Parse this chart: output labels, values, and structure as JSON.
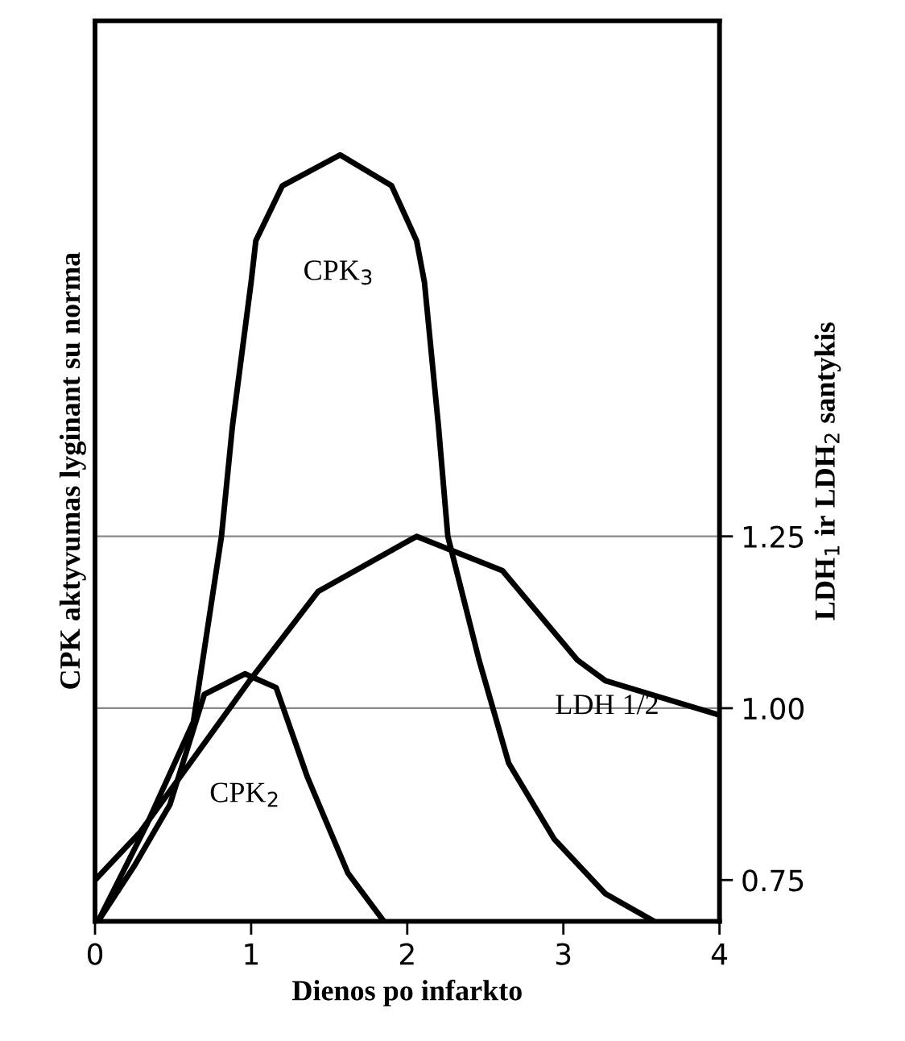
{
  "chart_data": {
    "type": "line",
    "xlabel": "Dienos po infarkto",
    "ylabel": "CPK aktyvumas lyginant su norma",
    "y2label": "LDH$_{1}$ ir LDH$_{2}$ santykis",
    "xlim": [
      0,
      4
    ],
    "xticks": [
      0,
      1,
      2,
      3,
      4
    ],
    "y2lim": [
      0.69,
      2.0
    ],
    "y2ticks": [
      {
        "value": 0.75,
        "label": "0.75"
      },
      {
        "value": 1,
        "label": "1.00"
      },
      {
        "value": 1.25,
        "label": "1.25"
      }
    ],
    "ref_lines": [
      {
        "axis": "y2",
        "value": 1.0,
        "color": "#888888"
      },
      {
        "axis": "y2",
        "value": 1.25,
        "color": "#888888"
      }
    ],
    "series": [
      {
        "name": "CPK$_{3}$",
        "color": "#000000",
        "axis": "y2",
        "x": [
          0.02,
          0.33,
          0.63,
          0.81,
          0.88,
          1.0,
          1.03,
          1.2,
          1.57,
          1.9,
          2.06,
          2.11,
          2.2,
          2.26,
          2.46,
          2.65,
          2.94,
          3.27,
          3.58
        ],
        "values": [
          0.69,
          0.83,
          0.98,
          1.25,
          1.41,
          1.62,
          1.68,
          1.76,
          1.805,
          1.76,
          1.68,
          1.62,
          1.41,
          1.25,
          1.07,
          0.92,
          0.81,
          0.73,
          0.69
        ]
      },
      {
        "name": "CPK$_{2}$",
        "color": "#000000",
        "axis": "y2",
        "x": [
          0.02,
          0.25,
          0.48,
          0.7,
          0.96,
          1.16,
          1.36,
          1.62,
          1.85
        ],
        "values": [
          0.69,
          0.77,
          0.86,
          1.02,
          1.05,
          1.03,
          0.9,
          0.76,
          0.69
        ]
      },
      {
        "name": "LDH 1/2",
        "color": "#000000",
        "axis": "y2",
        "x": [
          0,
          0.29,
          0.99,
          1.43,
          2.06,
          2.61,
          3.09,
          3.27,
          4
        ],
        "values": [
          0.75,
          0.82,
          1.04,
          1.17,
          1.25,
          1.2,
          1.07,
          1.04,
          0.99
        ]
      }
    ]
  }
}
